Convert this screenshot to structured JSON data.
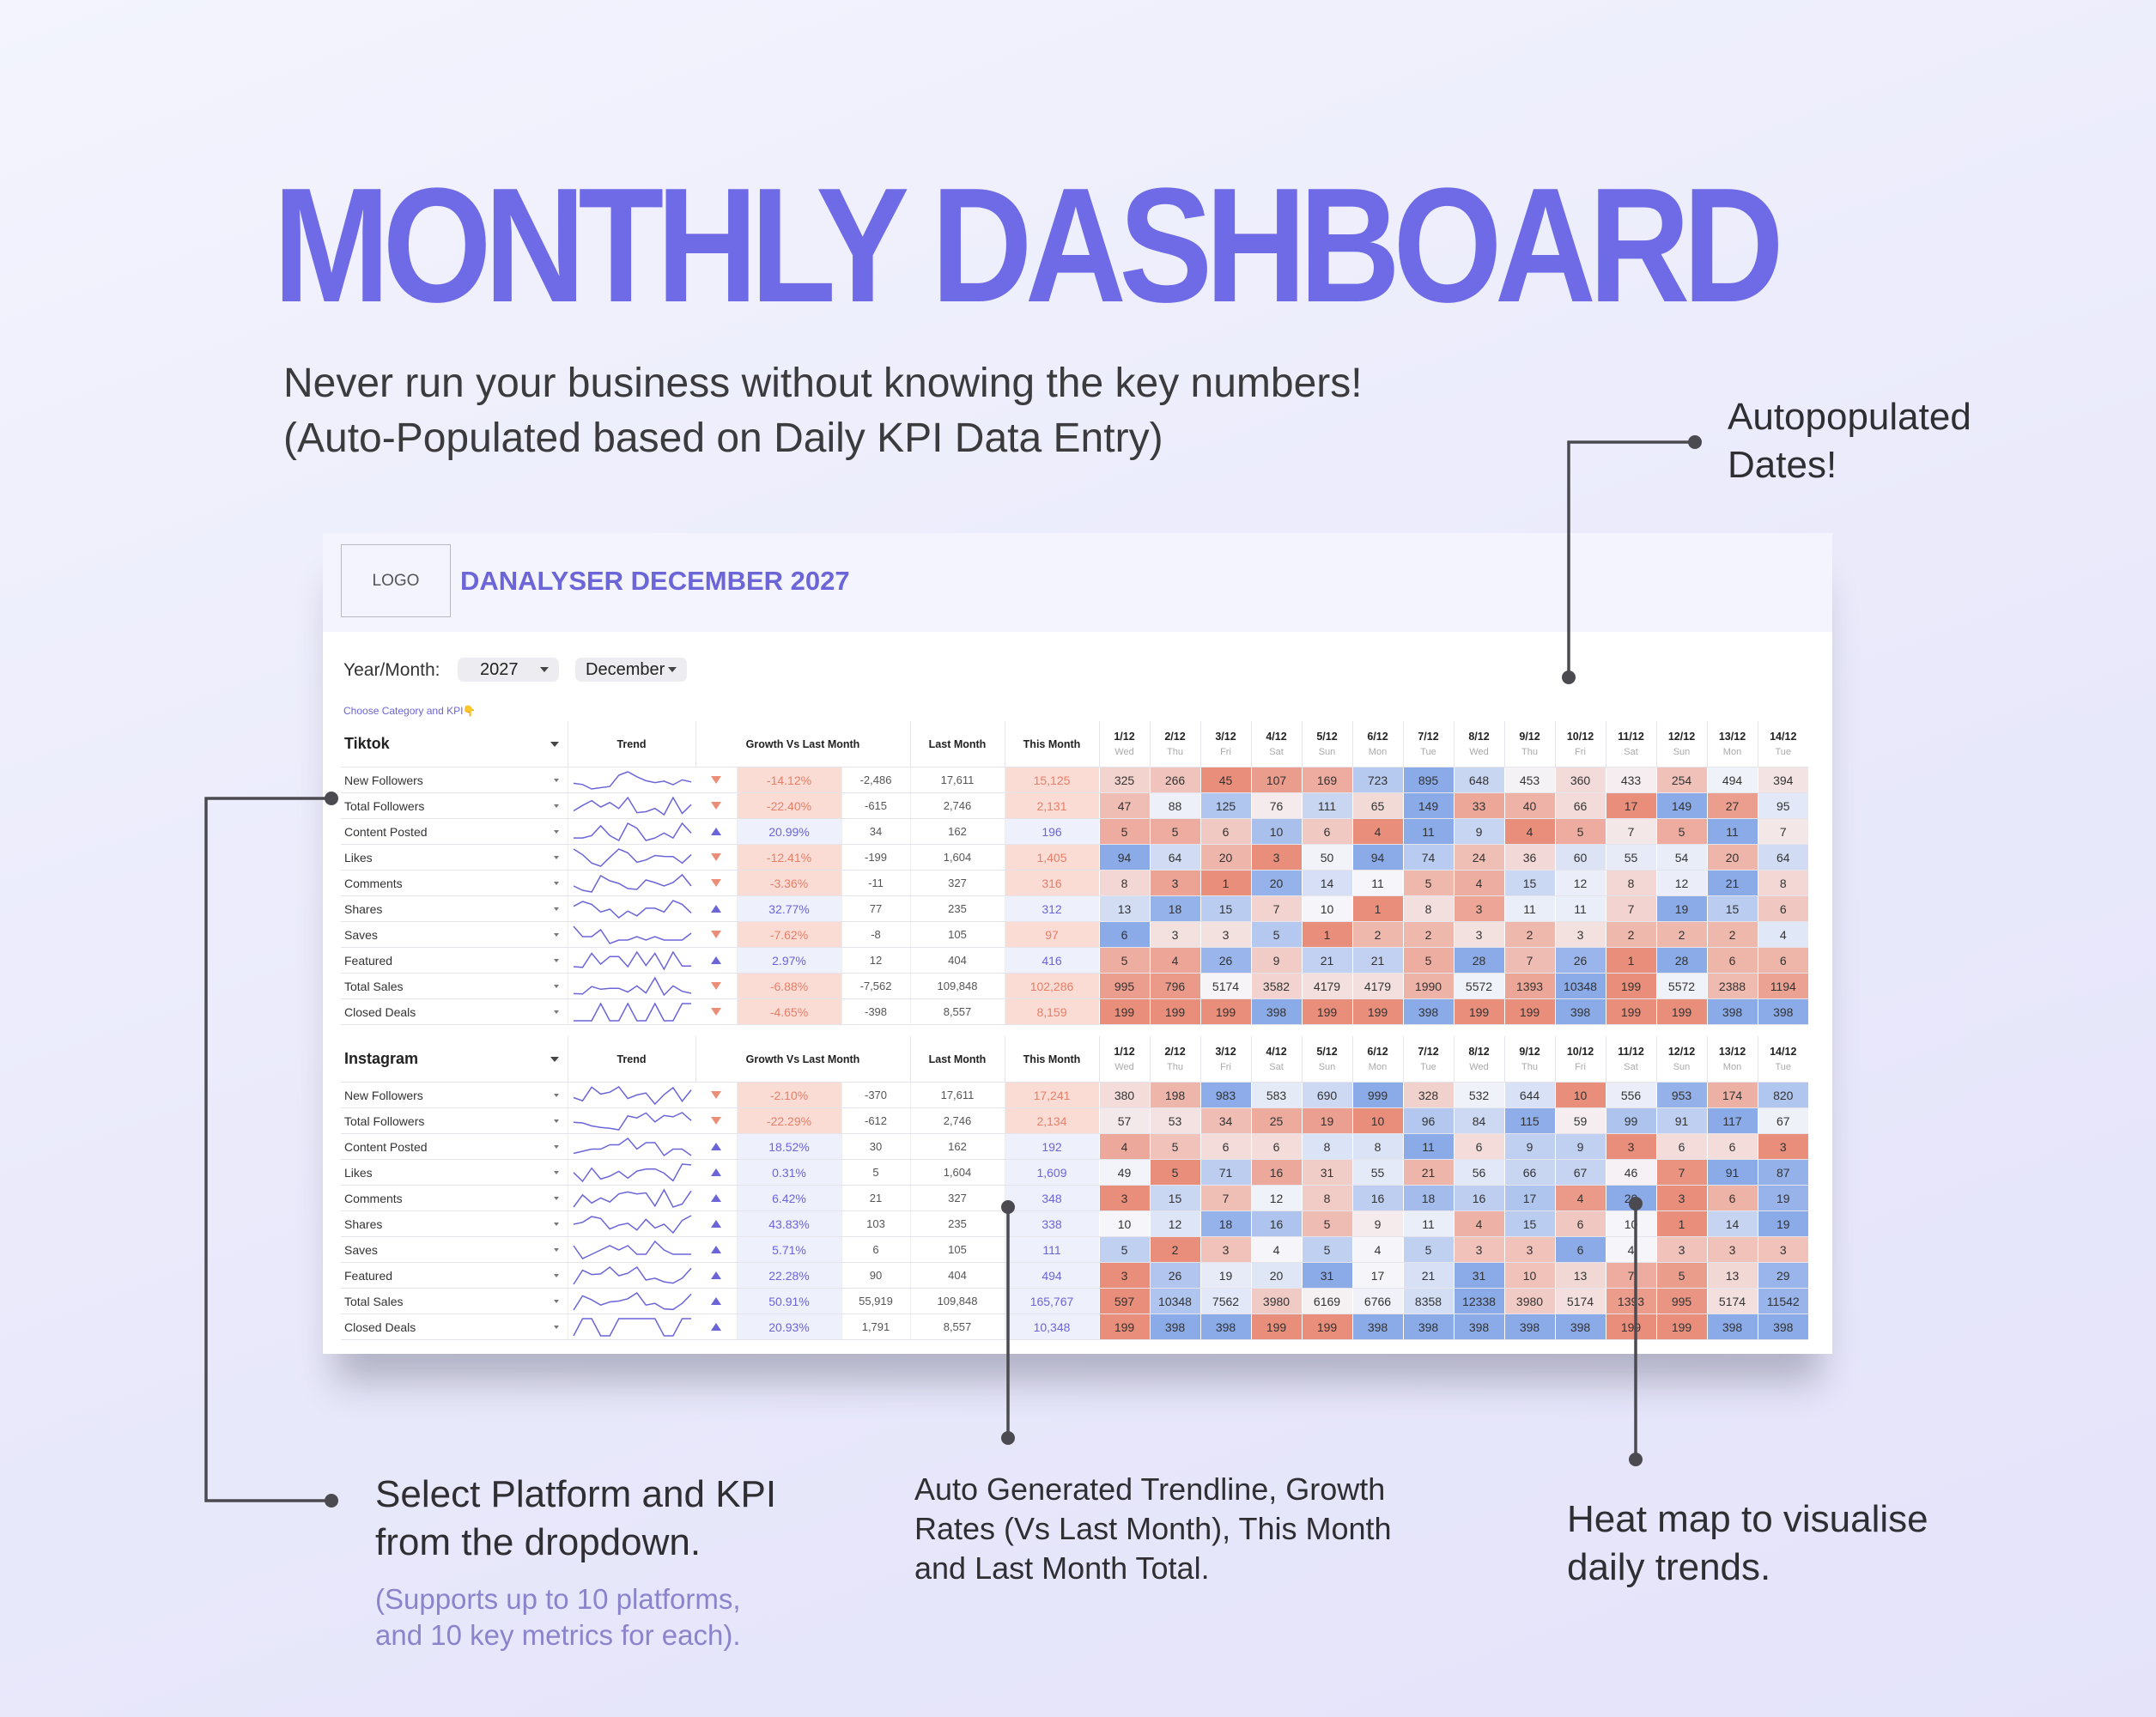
{
  "header": {
    "title": "MONTHLY DASHBOARD",
    "subtitle": [
      "Never run your business without knowing the key numbers!",
      "(Auto-Populated based on Daily KPI Data Entry)"
    ]
  },
  "callouts": {
    "dates": [
      "Autopopulated",
      "Dates!"
    ],
    "select": [
      "Select Platform and KPI",
      "from the dropdown."
    ],
    "select_note": [
      "(Supports up to 10 platforms,",
      "and 10 key metrics for each)."
    ],
    "trend": [
      "Auto Generated Trendline, Growth",
      "Rates (Vs Last Month), This Month",
      "and Last Month Total."
    ],
    "heat": [
      "Heat map to visualise",
      "daily trends."
    ]
  },
  "dashboard": {
    "logo": "LOGO",
    "title": "DANALYSER DECEMBER 2027",
    "year_month_label": "Year/Month:",
    "year": "2027",
    "month": "December",
    "hint": "Choose Category and KPI👇",
    "column_headers": {
      "trend": "Trend",
      "growth": "Growth Vs Last Month",
      "last": "Last Month",
      "this": "This Month"
    },
    "dates": [
      "1/12",
      "2/12",
      "3/12",
      "4/12",
      "5/12",
      "6/12",
      "7/12",
      "8/12",
      "9/12",
      "10/12",
      "11/12",
      "12/12",
      "13/12",
      "14/12"
    ],
    "weekdays": [
      "Wed",
      "Thu",
      "Fri",
      "Sat",
      "Sun",
      "Mon",
      "Tue",
      "Wed",
      "Thu",
      "Fri",
      "Sat",
      "Sun",
      "Mon",
      "Tue"
    ],
    "tables": [
      {
        "platform": "Tiktok",
        "rows": [
          {
            "kpi": "New Followers",
            "growth": "-14.12%",
            "change": "-2,486",
            "last": "17,611",
            "this": "15,125",
            "days": [
              325,
              266,
              45,
              107,
              169,
              723,
              895,
              648,
              453,
              360,
              433,
              254,
              494,
              394
            ]
          },
          {
            "kpi": "Total Followers",
            "growth": "-22.40%",
            "change": "-615",
            "last": "2,746",
            "this": "2,131",
            "days": [
              47,
              88,
              125,
              76,
              111,
              65,
              149,
              33,
              40,
              66,
              17,
              149,
              27,
              95
            ]
          },
          {
            "kpi": "Content Posted",
            "growth": "20.99%",
            "change": "34",
            "last": "162",
            "this": "196",
            "days": [
              5,
              5,
              6,
              10,
              6,
              4,
              11,
              9,
              4,
              5,
              7,
              5,
              11,
              7
            ]
          },
          {
            "kpi": "Likes",
            "growth": "-12.41%",
            "change": "-199",
            "last": "1,604",
            "this": "1,405",
            "days": [
              94,
              64,
              20,
              3,
              50,
              94,
              74,
              24,
              36,
              60,
              55,
              54,
              20,
              64
            ]
          },
          {
            "kpi": "Comments",
            "growth": "-3.36%",
            "change": "-11",
            "last": "327",
            "this": "316",
            "days": [
              8,
              3,
              1,
              20,
              14,
              11,
              5,
              4,
              15,
              12,
              8,
              12,
              21,
              8
            ]
          },
          {
            "kpi": "Shares",
            "growth": "32.77%",
            "change": "77",
            "last": "235",
            "this": "312",
            "days": [
              13,
              18,
              15,
              7,
              10,
              1,
              8,
              3,
              11,
              11,
              7,
              19,
              15,
              6
            ]
          },
          {
            "kpi": "Saves",
            "growth": "-7.62%",
            "change": "-8",
            "last": "105",
            "this": "97",
            "days": [
              6,
              3,
              3,
              5,
              1,
              2,
              2,
              3,
              2,
              3,
              2,
              2,
              2,
              4
            ]
          },
          {
            "kpi": "Featured",
            "growth": "2.97%",
            "change": "12",
            "last": "404",
            "this": "416",
            "days": [
              5,
              4,
              26,
              9,
              21,
              21,
              5,
              28,
              7,
              26,
              1,
              28,
              6,
              6
            ]
          },
          {
            "kpi": "Total Sales",
            "growth": "-6.88%",
            "change": "-7,562",
            "last": "109,848",
            "this": "102,286",
            "days": [
              995,
              796,
              5174,
              3582,
              4179,
              4179,
              1990,
              5572,
              1393,
              10348,
              199,
              5572,
              2388,
              1194
            ]
          },
          {
            "kpi": "Closed Deals",
            "growth": "-4.65%",
            "change": "-398",
            "last": "8,557",
            "this": "8,159",
            "days": [
              199,
              199,
              199,
              398,
              199,
              199,
              398,
              199,
              199,
              398,
              199,
              199,
              398,
              398
            ]
          }
        ]
      },
      {
        "platform": "Instagram",
        "rows": [
          {
            "kpi": "New Followers",
            "growth": "-2.10%",
            "change": "-370",
            "last": "17,611",
            "this": "17,241",
            "days": [
              380,
              198,
              983,
              583,
              690,
              999,
              328,
              532,
              644,
              10,
              556,
              953,
              174,
              820
            ]
          },
          {
            "kpi": "Total Followers",
            "growth": "-22.29%",
            "change": "-612",
            "last": "2,746",
            "this": "2,134",
            "days": [
              57,
              53,
              34,
              25,
              19,
              10,
              96,
              84,
              115,
              59,
              99,
              91,
              117,
              67
            ]
          },
          {
            "kpi": "Content Posted",
            "growth": "18.52%",
            "change": "30",
            "last": "162",
            "this": "192",
            "days": [
              4,
              5,
              6,
              6,
              8,
              8,
              11,
              6,
              9,
              9,
              3,
              6,
              6,
              3
            ]
          },
          {
            "kpi": "Likes",
            "growth": "0.31%",
            "change": "5",
            "last": "1,604",
            "this": "1,609",
            "days": [
              49,
              5,
              71,
              16,
              31,
              55,
              21,
              56,
              66,
              67,
              46,
              7,
              91,
              87
            ]
          },
          {
            "kpi": "Comments",
            "growth": "6.42%",
            "change": "21",
            "last": "327",
            "this": "348",
            "days": [
              3,
              15,
              7,
              12,
              8,
              16,
              18,
              16,
              17,
              4,
              20,
              3,
              6,
              19
            ]
          },
          {
            "kpi": "Shares",
            "growth": "43.83%",
            "change": "103",
            "last": "235",
            "this": "338",
            "days": [
              10,
              12,
              18,
              16,
              5,
              9,
              11,
              4,
              15,
              6,
              10,
              1,
              14,
              19
            ]
          },
          {
            "kpi": "Saves",
            "growth": "5.71%",
            "change": "6",
            "last": "105",
            "this": "111",
            "days": [
              5,
              2,
              3,
              4,
              5,
              4,
              5,
              3,
              3,
              6,
              4,
              3,
              3,
              3
            ]
          },
          {
            "kpi": "Featured",
            "growth": "22.28%",
            "change": "90",
            "last": "404",
            "this": "494",
            "days": [
              3,
              26,
              19,
              20,
              31,
              17,
              21,
              31,
              10,
              13,
              7,
              5,
              13,
              29
            ]
          },
          {
            "kpi": "Total Sales",
            "growth": "50.91%",
            "change": "55,919",
            "last": "109,848",
            "this": "165,767",
            "days": [
              597,
              10348,
              7562,
              3980,
              6169,
              6766,
              8358,
              12338,
              3980,
              5174,
              1393,
              995,
              5174,
              11542
            ]
          },
          {
            "kpi": "Closed Deals",
            "growth": "20.93%",
            "change": "1,791",
            "last": "8,557",
            "this": "10,348",
            "days": [
              199,
              398,
              398,
              199,
              199,
              398,
              398,
              398,
              398,
              398,
              199,
              199,
              398,
              398
            ]
          }
        ]
      }
    ]
  }
}
